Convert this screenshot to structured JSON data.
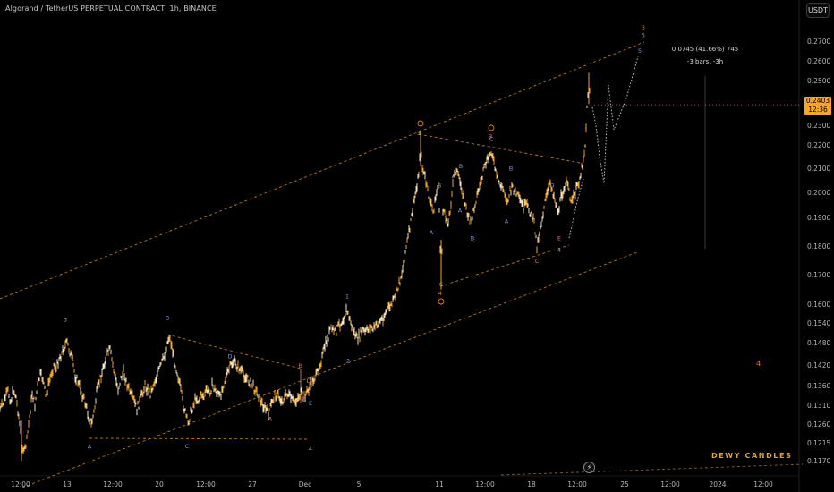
{
  "header": {
    "title": "Algorand / TetherUS PERPETUAL CONTRACT, 1h, BINANCE",
    "currency_button": "USDT"
  },
  "last_price": {
    "value": "0.2403",
    "countdown": "12:36",
    "color": "#f5a623"
  },
  "measure": {
    "line1": "0.0745 (41.66%) 745",
    "line2": "-3 bars, -3h"
  },
  "watermark": "DEWY CANDLES",
  "chart_data": {
    "type": "candlestick",
    "symbol": "ALGOUSDT.P",
    "timeframe": "1h",
    "exchange": "BINANCE",
    "y_axis_ticks": [
      "0.2700",
      "0.2600",
      "0.2500",
      "0.2400",
      "0.2300",
      "0.2200",
      "0.2100",
      "0.2000",
      "0.1900",
      "0.1800",
      "0.1700",
      "0.1600",
      "0.1540",
      "0.1480",
      "0.1420",
      "0.1360",
      "0.1310",
      "0.1260",
      "0.1215",
      "0.1170"
    ],
    "x_axis_ticks": [
      "12:00",
      "13",
      "12:00",
      "20",
      "12:00",
      "27",
      "Dec",
      "5",
      "11",
      "12:00",
      "18",
      "12:00",
      "25",
      "12:00",
      "2024",
      "12:00"
    ],
    "close_path": [
      [
        0,
        0.13
      ],
      [
        3,
        0.131
      ],
      [
        6,
        0.133
      ],
      [
        9,
        0.1345
      ],
      [
        12,
        0.132
      ],
      [
        15,
        0.135
      ],
      [
        18,
        0.133
      ],
      [
        21,
        0.128
      ],
      [
        24,
        0.122
      ],
      [
        27,
        0.119
      ],
      [
        30,
        0.122
      ],
      [
        33,
        0.128
      ],
      [
        36,
        0.134
      ],
      [
        39,
        0.131
      ],
      [
        42,
        0.136
      ],
      [
        45,
        0.139
      ],
      [
        48,
        0.138
      ],
      [
        51,
        0.133
      ],
      [
        54,
        0.136
      ],
      [
        57,
        0.139
      ],
      [
        60,
        0.142
      ],
      [
        63,
        0.141
      ],
      [
        66,
        0.144
      ],
      [
        69,
        0.145
      ],
      [
        72,
        0.147
      ],
      [
        75,
        0.148
      ],
      [
        78,
        0.1455
      ],
      [
        81,
        0.143
      ],
      [
        84,
        0.139
      ],
      [
        87,
        0.137
      ],
      [
        90,
        0.135
      ],
      [
        93,
        0.133
      ],
      [
        96,
        0.131
      ],
      [
        99,
        0.128
      ],
      [
        102,
        0.126
      ],
      [
        105,
        0.129
      ],
      [
        108,
        0.134
      ],
      [
        111,
        0.137
      ],
      [
        114,
        0.14
      ],
      [
        117,
        0.143
      ],
      [
        120,
        0.145
      ],
      [
        123,
        0.146
      ],
      [
        126,
        0.142
      ],
      [
        129,
        0.138
      ],
      [
        132,
        0.135
      ],
      [
        135,
        0.138
      ],
      [
        138,
        0.14
      ],
      [
        141,
        0.137
      ],
      [
        144,
        0.135
      ],
      [
        147,
        0.133
      ],
      [
        150,
        0.132
      ],
      [
        153,
        0.13
      ],
      [
        156,
        0.132
      ],
      [
        159,
        0.134
      ],
      [
        162,
        0.136
      ],
      [
        165,
        0.135
      ],
      [
        168,
        0.134
      ],
      [
        171,
        0.136
      ],
      [
        174,
        0.138
      ],
      [
        177,
        0.14
      ],
      [
        180,
        0.142
      ],
      [
        183,
        0.144
      ],
      [
        186,
        0.147
      ],
      [
        189,
        0.15
      ],
      [
        192,
        0.147
      ],
      [
        195,
        0.143
      ],
      [
        198,
        0.14
      ],
      [
        201,
        0.136
      ],
      [
        204,
        0.132
      ],
      [
        207,
        0.129
      ],
      [
        210,
        0.126
      ],
      [
        213,
        0.129
      ],
      [
        216,
        0.131
      ],
      [
        219,
        0.133
      ],
      [
        222,
        0.132
      ],
      [
        225,
        0.134
      ],
      [
        228,
        0.133
      ],
      [
        231,
        0.135
      ],
      [
        234,
        0.134
      ],
      [
        237,
        0.136
      ],
      [
        240,
        0.135
      ],
      [
        243,
        0.134
      ],
      [
        246,
        0.133
      ],
      [
        249,
        0.136
      ],
      [
        252,
        0.138
      ],
      [
        255,
        0.14
      ],
      [
        258,
        0.142
      ],
      [
        261,
        0.143
      ],
      [
        264,
        0.142
      ],
      [
        267,
        0.141
      ],
      [
        270,
        0.14
      ],
      [
        273,
        0.139
      ],
      [
        276,
        0.138
      ],
      [
        279,
        0.137
      ],
      [
        282,
        0.136
      ],
      [
        285,
        0.135
      ],
      [
        288,
        0.134
      ],
      [
        291,
        0.132
      ],
      [
        294,
        0.131
      ],
      [
        297,
        0.13
      ],
      [
        300,
        0.129
      ],
      [
        303,
        0.131
      ],
      [
        306,
        0.133
      ],
      [
        309,
        0.134
      ],
      [
        312,
        0.133
      ],
      [
        315,
        0.132
      ],
      [
        318,
        0.133
      ],
      [
        321,
        0.134
      ],
      [
        324,
        0.133
      ],
      [
        327,
        0.132
      ],
      [
        330,
        0.132
      ],
      [
        333,
        0.133
      ],
      [
        336,
        0.134
      ],
      [
        339,
        0.133
      ],
      [
        342,
        0.134
      ],
      [
        345,
        0.135
      ],
      [
        348,
        0.137
      ],
      [
        351,
        0.138
      ],
      [
        354,
        0.139
      ],
      [
        357,
        0.142
      ],
      [
        360,
        0.144
      ],
      [
        363,
        0.147
      ],
      [
        366,
        0.149
      ],
      [
        369,
        0.152
      ],
      [
        372,
        0.152
      ],
      [
        375,
        0.151
      ],
      [
        378,
        0.153
      ],
      [
        381,
        0.154
      ],
      [
        384,
        0.156
      ],
      [
        387,
        0.158
      ],
      [
        390,
        0.156
      ],
      [
        393,
        0.153
      ],
      [
        396,
        0.151
      ],
      [
        399,
        0.149
      ],
      [
        402,
        0.15
      ],
      [
        405,
        0.152
      ],
      [
        408,
        0.151
      ],
      [
        411,
        0.152
      ],
      [
        414,
        0.153
      ],
      [
        417,
        0.152
      ],
      [
        420,
        0.153
      ],
      [
        423,
        0.154
      ],
      [
        426,
        0.155
      ],
      [
        429,
        0.156
      ],
      [
        432,
        0.158
      ],
      [
        435,
        0.159
      ],
      [
        438,
        0.16
      ],
      [
        441,
        0.162
      ],
      [
        444,
        0.165
      ],
      [
        447,
        0.168
      ],
      [
        450,
        0.172
      ],
      [
        453,
        0.178
      ],
      [
        456,
        0.183
      ],
      [
        459,
        0.188
      ],
      [
        462,
        0.195
      ],
      [
        465,
        0.201
      ],
      [
        468,
        0.208
      ],
      [
        470,
        0.224
      ],
      [
        472,
        0.21
      ],
      [
        475,
        0.206
      ],
      [
        478,
        0.2
      ],
      [
        481,
        0.196
      ],
      [
        484,
        0.192
      ],
      [
        487,
        0.198
      ],
      [
        490,
        0.204
      ],
      [
        493,
        0.166
      ],
      [
        495,
        0.192
      ],
      [
        498,
        0.19
      ],
      [
        501,
        0.188
      ],
      [
        504,
        0.196
      ],
      [
        507,
        0.206
      ],
      [
        510,
        0.21
      ],
      [
        513,
        0.205
      ],
      [
        516,
        0.202
      ],
      [
        519,
        0.196
      ],
      [
        522,
        0.192
      ],
      [
        525,
        0.188
      ],
      [
        528,
        0.19
      ],
      [
        531,
        0.196
      ],
      [
        534,
        0.2
      ],
      [
        537,
        0.204
      ],
      [
        540,
        0.208
      ],
      [
        543,
        0.212
      ],
      [
        546,
        0.214
      ],
      [
        549,
        0.218
      ],
      [
        552,
        0.212
      ],
      [
        555,
        0.206
      ],
      [
        558,
        0.204
      ],
      [
        561,
        0.202
      ],
      [
        564,
        0.2
      ],
      [
        567,
        0.196
      ],
      [
        570,
        0.2
      ],
      [
        573,
        0.202
      ],
      [
        576,
        0.2
      ],
      [
        579,
        0.198
      ],
      [
        582,
        0.196
      ],
      [
        585,
        0.194
      ],
      [
        588,
        0.195
      ],
      [
        591,
        0.193
      ],
      [
        594,
        0.191
      ],
      [
        597,
        0.188
      ],
      [
        600,
        0.18
      ],
      [
        603,
        0.185
      ],
      [
        606,
        0.19
      ],
      [
        609,
        0.196
      ],
      [
        612,
        0.2
      ],
      [
        615,
        0.204
      ],
      [
        618,
        0.2
      ],
      [
        621,
        0.196
      ],
      [
        624,
        0.192
      ],
      [
        627,
        0.198
      ],
      [
        630,
        0.202
      ],
      [
        633,
        0.204
      ],
      [
        636,
        0.2
      ],
      [
        639,
        0.196
      ],
      [
        642,
        0.199
      ],
      [
        645,
        0.202
      ],
      [
        648,
        0.206
      ],
      [
        651,
        0.212
      ],
      [
        654,
        0.22
      ],
      [
        656,
        0.238
      ],
      [
        658,
        0.252
      ],
      [
        660,
        0.2403
      ]
    ],
    "wave_labels": [
      {
        "text": "3",
        "x": 73,
        "y": 0.1545,
        "color": "#c8b07a"
      },
      {
        "text": "A",
        "x": 100,
        "y": 0.12,
        "color": "#7a9ad8"
      },
      {
        "text": "B",
        "x": 187,
        "y": 0.155,
        "color": "#7a9ad8"
      },
      {
        "text": "C",
        "x": 209,
        "y": 0.1202,
        "color": "#7a9ad8"
      },
      {
        "text": "D",
        "x": 257,
        "y": 0.1438,
        "color": "#7a9ad8"
      },
      {
        "text": "A",
        "x": 302,
        "y": 0.1268,
        "color": "#e07a9a"
      },
      {
        "text": "B",
        "x": 336,
        "y": 0.1412,
        "color": "#e07a9a"
      },
      {
        "text": "D",
        "x": 345,
        "y": 0.1368,
        "color": "#e07a9a"
      },
      {
        "text": "C",
        "x": 340,
        "y": 0.132,
        "color": "#e07a9a"
      },
      {
        "text": "E",
        "x": 347,
        "y": 0.131,
        "color": "#7a9ad8"
      },
      {
        "text": "4",
        "x": 347,
        "y": 0.1195,
        "color": "#c8b07a"
      },
      {
        "text": "1",
        "x": 388,
        "y": 0.162,
        "color": "#7a9ad8"
      },
      {
        "text": "2",
        "x": 389,
        "y": 0.1426,
        "color": "#7a9ad8"
      },
      {
        "text": "3",
        "x": 468,
        "y": 0.225,
        "color": "#c8b07a"
      },
      {
        "text": "A",
        "x": 482,
        "y": 0.184,
        "color": "#7a9ad8"
      },
      {
        "text": "B",
        "x": 491,
        "y": 0.202,
        "color": "#7a9ad8"
      },
      {
        "text": "C",
        "x": 493,
        "y": 0.166,
        "color": "#7a9ad8"
      },
      {
        "text": "4",
        "x": 492,
        "y": 0.163,
        "color": "#e07a20"
      },
      {
        "text": "A",
        "x": 507,
        "y": 0.206,
        "color": "#7a9ad8"
      },
      {
        "text": "B",
        "x": 515,
        "y": 0.21,
        "color": "#7a9ad8"
      },
      {
        "text": "A",
        "x": 514,
        "y": 0.192,
        "color": "#7a9ad8"
      },
      {
        "text": "B",
        "x": 528,
        "y": 0.182,
        "color": "#7a9ad8"
      },
      {
        "text": "B",
        "x": 548,
        "y": 0.2235,
        "color": "#e07a9a"
      },
      {
        "text": "C",
        "x": 549,
        "y": 0.222,
        "color": "#7a9ad8"
      },
      {
        "text": "A",
        "x": 566,
        "y": 0.188,
        "color": "#7a9ad8"
      },
      {
        "text": "B",
        "x": 571,
        "y": 0.209,
        "color": "#7a9ad8"
      },
      {
        "text": "C",
        "x": 600,
        "y": 0.174,
        "color": "#e07a9a"
      },
      {
        "text": "D",
        "x": 617,
        "y": 0.202,
        "color": "#7a9ad8"
      },
      {
        "text": "E",
        "x": 625,
        "y": 0.182,
        "color": "#e07a9a"
      },
      {
        "text": "4",
        "x": 625,
        "y": 0.178,
        "color": "#7a9ad8"
      },
      {
        "text": "3",
        "x": 719,
        "y": 0.276,
        "color": "#e07a20"
      },
      {
        "text": "5",
        "x": 719,
        "y": 0.272,
        "color": "#c8b07a"
      },
      {
        "text": "5",
        "x": 715,
        "y": 0.264,
        "color": "#7a9ad8"
      }
    ],
    "title": "Algorand / TetherUS PERPETUAL CONTRACT, 1h, BINANCE",
    "ylim": [
      0.115,
      0.282
    ],
    "grid": false,
    "series_color": "#f5a623"
  }
}
